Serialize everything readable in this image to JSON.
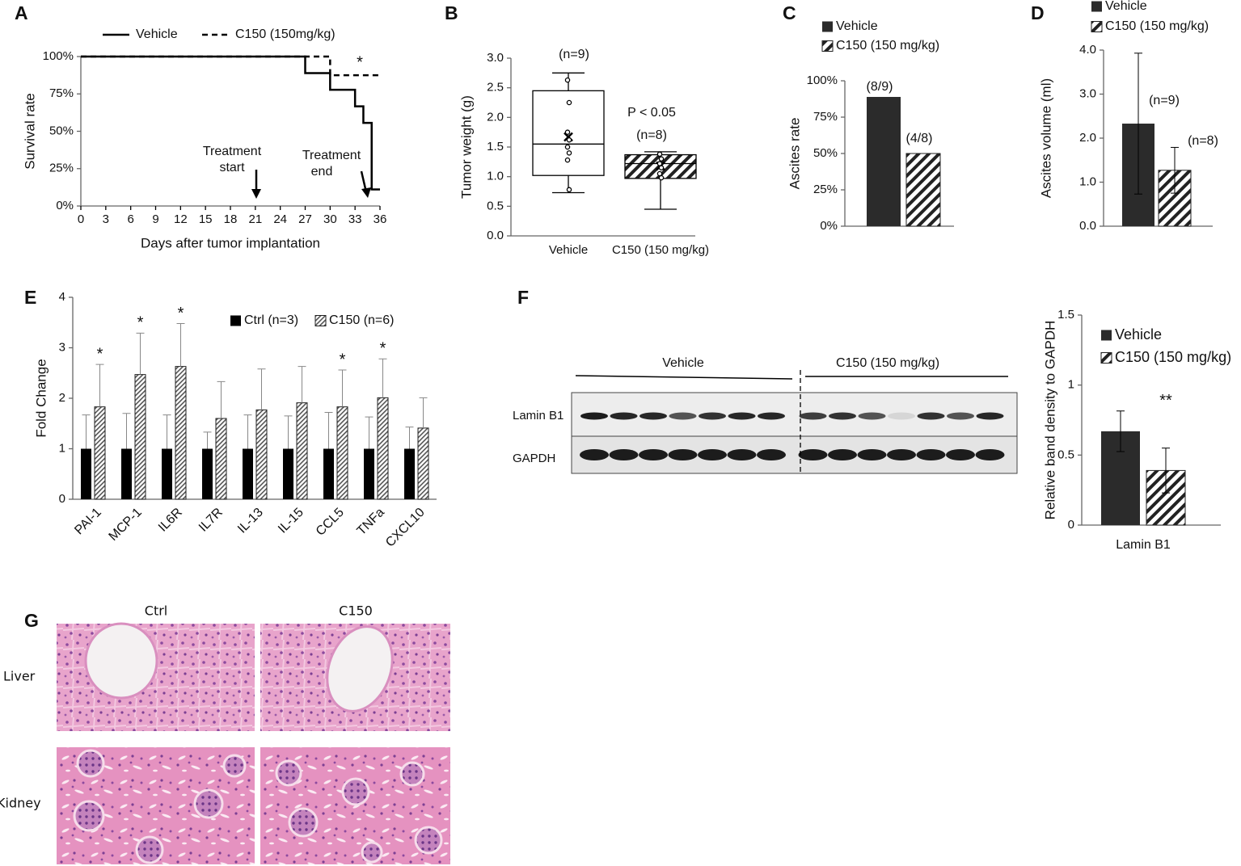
{
  "chart_data": [
    {
      "panel": "A",
      "type": "line",
      "step": true,
      "x_label": "Days after tumor implantation",
      "y_label": "Survival rate",
      "xlim": [
        0,
        36
      ],
      "xticks": [
        0,
        3,
        6,
        9,
        12,
        15,
        18,
        21,
        24,
        27,
        30,
        33,
        36
      ],
      "ylim": [
        0,
        100
      ],
      "yticks": [
        {
          "value": 0,
          "label": "0%"
        },
        {
          "value": 25,
          "label": "25%"
        },
        {
          "value": 50,
          "label": "50%"
        },
        {
          "value": 75,
          "label": "75%"
        },
        {
          "value": 100,
          "label": "100%"
        }
      ],
      "series": [
        {
          "name": "Vehicle",
          "color": "#000000",
          "line_style": "solid",
          "x": [
            0,
            27,
            30,
            33,
            34,
            35,
            36
          ],
          "values": [
            100,
            88.9,
            77.8,
            66.7,
            55.6,
            11.1,
            11.1
          ]
        },
        {
          "name": "C150 (150mg/kg)",
          "color": "#000000",
          "line_style": "dashed",
          "x": [
            0,
            30,
            36
          ],
          "values": [
            100,
            87.5,
            87.5
          ]
        }
      ],
      "annotations": [
        "*",
        "Treatment",
        "start",
        "Treatment",
        "end"
      ]
    },
    {
      "panel": "B",
      "type": "box",
      "y_label": "Tumor weight (g)",
      "ylim": [
        0,
        3
      ],
      "yticks": [
        {
          "value": 0,
          "label": "0.0"
        },
        {
          "value": 0.5,
          "label": "0.5"
        },
        {
          "value": 1,
          "label": "1.0"
        },
        {
          "value": 1.5,
          "label": "1.5"
        },
        {
          "value": 2,
          "label": "2.0"
        },
        {
          "value": 2.5,
          "label": "2.5"
        },
        {
          "value": 3,
          "label": "3.0"
        }
      ],
      "categories": [
        "Vehicle",
        "C150 (150 mg/kg)"
      ],
      "boxes": [
        {
          "min": 0.73,
          "q1": 1.02,
          "median": 1.55,
          "q3": 2.45,
          "max": 2.75,
          "mean": 1.67,
          "points": [
            2.63,
            2.25,
            1.75,
            1.62,
            1.5,
            1.4,
            1.28,
            0.78
          ],
          "pattern": "none"
        },
        {
          "min": 0.45,
          "q1": 0.97,
          "median": 1.22,
          "q3": 1.37,
          "max": 1.42,
          "mean": 1.18,
          "points": [
            1.38,
            1.3,
            1.22,
            1.15,
            1.05,
            0.98
          ],
          "pattern": "hatch"
        }
      ],
      "annotations": [
        "(n=9)",
        "P < 0.05",
        "(n=8)"
      ]
    },
    {
      "panel": "C",
      "type": "bar",
      "y_label": "Ascites rate",
      "ylim": [
        0,
        100
      ],
      "yticks": [
        {
          "value": 0,
          "label": "0%"
        },
        {
          "value": 25,
          "label": "25%"
        },
        {
          "value": 50,
          "label": "50%"
        },
        {
          "value": 75,
          "label": "75%"
        },
        {
          "value": 100,
          "label": "100%"
        }
      ],
      "series": [
        {
          "name": "Vehicle",
          "color": "#2b2b2b",
          "pattern": "solid",
          "values": [
            88.9
          ]
        },
        {
          "name": "C150 (150 mg/kg)",
          "color": "#2b2b2b",
          "pattern": "hatch",
          "values": [
            50
          ]
        }
      ],
      "annotations": [
        "(8/9)",
        "(4/8)"
      ]
    },
    {
      "panel": "D",
      "type": "bar",
      "y_label": "Ascites volume (ml)",
      "ylim": [
        0,
        4
      ],
      "yticks": [
        {
          "value": 0,
          "label": "0.0"
        },
        {
          "value": 1,
          "label": "1.0"
        },
        {
          "value": 2,
          "label": "2.0"
        },
        {
          "value": 3,
          "label": "3.0"
        },
        {
          "value": 4,
          "label": "4.0"
        }
      ],
      "error_bars": "both",
      "series": [
        {
          "name": "Vehicle",
          "color": "#2b2b2b",
          "pattern": "solid",
          "values": [
            2.33
          ],
          "errors": [
            1.6
          ]
        },
        {
          "name": "C150 (150 mg/kg)",
          "color": "#2b2b2b",
          "pattern": "hatch",
          "values": [
            1.27
          ],
          "errors": [
            0.52
          ]
        }
      ],
      "annotations": [
        "(n=9)",
        "(n=8)"
      ]
    },
    {
      "panel": "E",
      "type": "bar",
      "y_label": "Fold Change",
      "ylim": [
        0,
        4
      ],
      "yticks": [
        0,
        1,
        2,
        3,
        4
      ],
      "error_bars": "upper",
      "categories": [
        "PAI-1",
        "MCP-1",
        "IL6R",
        "IL7R",
        "IL-13",
        "IL-15",
        "CCL5",
        "TNFa",
        "CXCL10"
      ],
      "series": [
        {
          "name": "Ctrl (n=3)",
          "color": "#000000",
          "pattern": "solid",
          "values": [
            1,
            1,
            1,
            1,
            1,
            1,
            1,
            1,
            1
          ],
          "errors": [
            0.67,
            0.7,
            0.67,
            0.33,
            0.67,
            0.65,
            0.72,
            0.63,
            0.43
          ]
        },
        {
          "name": "C150  (n=6)",
          "color": "#555555",
          "pattern": "dense-hatch",
          "values": [
            1.83,
            2.47,
            2.63,
            1.6,
            1.77,
            1.91,
            1.83,
            2.01,
            1.41
          ],
          "errors": [
            0.84,
            0.82,
            0.85,
            0.73,
            0.81,
            0.72,
            0.73,
            0.77,
            0.6
          ]
        }
      ],
      "significance": [
        "*",
        "*",
        "*",
        null,
        null,
        null,
        "*",
        "*",
        null
      ]
    },
    {
      "panel": "F",
      "type": "bar",
      "y_label": "Relative band density to GAPDH",
      "ylim": [
        0,
        1.5
      ],
      "yticks": [
        0,
        0.5,
        1,
        1.5
      ],
      "error_bars": "both",
      "categories": [
        "Lamin B1"
      ],
      "series": [
        {
          "name": "Vehicle",
          "color": "#2b2b2b",
          "pattern": "solid",
          "values": [
            0.67
          ],
          "errors": [
            0.145
          ]
        },
        {
          "name": "C150 (150 mg/kg)",
          "color": "#2b2b2b",
          "pattern": "hatch",
          "values": [
            0.39
          ],
          "errors": [
            0.16
          ]
        }
      ],
      "significance": [
        "**"
      ]
    }
  ],
  "blot": {
    "groups": [
      "Vehicle",
      "C150 (150 mg/kg)"
    ],
    "rows": [
      "Lamin B1",
      "GAPDH"
    ]
  },
  "histology": {
    "panel": "G",
    "columns": [
      "Ctrl",
      "C150"
    ],
    "rows": [
      "Liver",
      "Kidney"
    ]
  }
}
